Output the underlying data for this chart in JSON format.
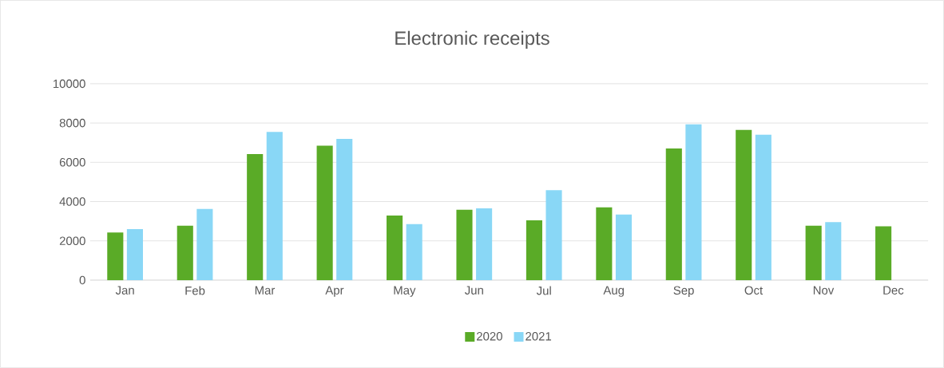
{
  "chart_data": {
    "type": "bar",
    "title": "Electronic receipts",
    "categories": [
      "Jan",
      "Feb",
      "Mar",
      "Apr",
      "May",
      "Jun",
      "Jul",
      "Aug",
      "Sep",
      "Oct",
      "Nov",
      "Dec"
    ],
    "series": [
      {
        "name": "2020",
        "color": "#5aab27",
        "values": [
          2430,
          2770,
          6420,
          6850,
          3290,
          3580,
          3050,
          3710,
          6700,
          7650,
          2770,
          2740
        ]
      },
      {
        "name": "2021",
        "color": "#89d7f6",
        "values": [
          2600,
          3620,
          7550,
          7190,
          2850,
          3660,
          4580,
          3340,
          7930,
          7400,
          2950,
          null
        ]
      }
    ],
    "ylim": [
      0,
      10000
    ],
    "yticks": [
      0,
      2000,
      4000,
      6000,
      8000,
      10000
    ],
    "grid": "y",
    "legend": "bottom"
  }
}
